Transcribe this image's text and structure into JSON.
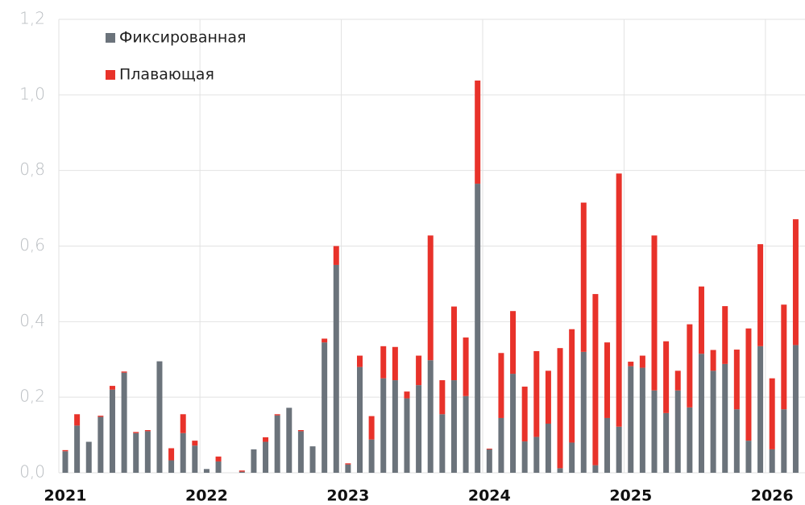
{
  "chart_data": {
    "type": "bar",
    "stacked": true,
    "categories": [
      "2021",
      null,
      null,
      null,
      null,
      null,
      null,
      null,
      null,
      null,
      null,
      null,
      "2022",
      null,
      null,
      null,
      null,
      null,
      null,
      null,
      null,
      null,
      null,
      null,
      "2023",
      null,
      null,
      null,
      null,
      null,
      null,
      null,
      null,
      null,
      null,
      null,
      "2024",
      null,
      null,
      null,
      null,
      null,
      null,
      null,
      null,
      null,
      null,
      null,
      "2025",
      null,
      null,
      null,
      null,
      null,
      null,
      null,
      null,
      null,
      null,
      null,
      "2026",
      null,
      null
    ],
    "series": [
      {
        "name": "Фиксированная",
        "color": "#6b737b",
        "values": [
          0.057,
          0.125,
          0.082,
          0.148,
          0.22,
          0.265,
          0.105,
          0.11,
          0.295,
          0.033,
          0.105,
          0.072,
          0.01,
          0.03,
          0,
          0.003,
          0.062,
          0.082,
          0.152,
          0.172,
          0.11,
          0.07,
          0.345,
          0.55,
          0.022,
          0.28,
          0.088,
          0.25,
          0.245,
          0.197,
          0.232,
          0.298,
          0.155,
          0.245,
          0.203,
          0.765,
          0.062,
          0.145,
          0.262,
          0.083,
          0.095,
          0.13,
          0.012,
          0.08,
          0.32,
          0.02,
          0.145,
          0.122,
          0.282,
          0.278,
          0.218,
          0.158,
          0.218,
          0.173,
          0.315,
          0.27,
          0.288,
          0.168,
          0.085,
          0.335,
          0.062,
          0.168,
          0.338
        ]
      },
      {
        "name": "Плавающая",
        "color": "#e8322a",
        "values": [
          0.003,
          0.03,
          0,
          0.003,
          0.01,
          0.003,
          0.003,
          0.003,
          0,
          0.032,
          0.05,
          0.013,
          0,
          0.013,
          0,
          0.003,
          0,
          0.012,
          0.003,
          0,
          0.003,
          0,
          0.01,
          0.05,
          0.003,
          0.03,
          0.062,
          0.085,
          0.088,
          0.018,
          0.078,
          0.33,
          0.09,
          0.195,
          0.155,
          0.273,
          0.002,
          0.172,
          0.166,
          0.145,
          0.227,
          0.14,
          0.318,
          0.3,
          0.395,
          0.453,
          0.2,
          0.67,
          0.012,
          0.032,
          0.41,
          0.19,
          0.052,
          0.22,
          0.178,
          0.055,
          0.153,
          0.158,
          0.297,
          0.27,
          0.188,
          0.277,
          0.333
        ]
      }
    ],
    "ylim": [
      0,
      1.2
    ],
    "yticks": [
      {
        "value": 0,
        "label": "0,0"
      },
      {
        "value": 0.2,
        "label": "0,2"
      },
      {
        "value": 0.4,
        "label": "0,4"
      },
      {
        "value": 0.6,
        "label": "0,6"
      },
      {
        "value": 0.8,
        "label": "0,8"
      },
      {
        "value": 1.0,
        "label": "1,0"
      },
      {
        "value": 1.2,
        "label": "1,2"
      }
    ],
    "grid": true,
    "legend": "top-left"
  }
}
